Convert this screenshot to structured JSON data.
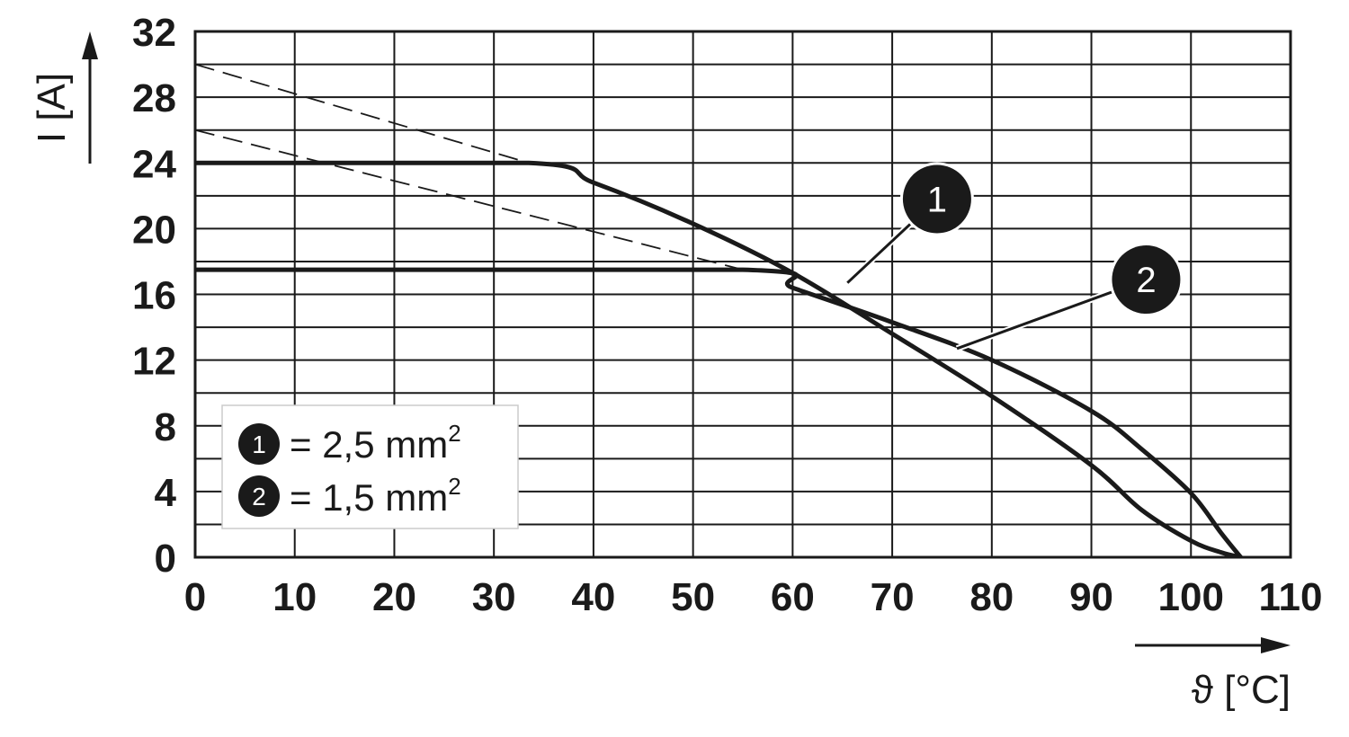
{
  "chart_data": {
    "type": "line",
    "xlabel": "ϑ [°C]",
    "ylabel": "I [A]",
    "xlim": [
      0,
      110
    ],
    "ylim": [
      0,
      32
    ],
    "x_ticks": [
      "0",
      "10",
      "20",
      "30",
      "40",
      "50",
      "60",
      "70",
      "80",
      "90",
      "100",
      "110"
    ],
    "y_ticks": [
      "0",
      "4",
      "8",
      "12",
      "16",
      "20",
      "24",
      "28",
      "32"
    ],
    "grid": true,
    "legend_position": "bottom-left",
    "series": [
      {
        "name": "2,5 mm",
        "badge": "1",
        "legend_prefix": "= ",
        "legend_label": "2,5 mm",
        "legend_sup": "2",
        "x": [
          0,
          33.5,
          40,
          50,
          60,
          70,
          80,
          90,
          95,
          100,
          103,
          105
        ],
        "y": [
          24,
          24,
          22.8,
          20.3,
          17.3,
          13.6,
          9.8,
          5.6,
          2.9,
          1.0,
          0.3,
          0
        ]
      },
      {
        "name": "1,5 mm",
        "badge": "2",
        "legend_prefix": "= ",
        "legend_label": "1,5 mm",
        "legend_sup": "2",
        "x": [
          0,
          55,
          60,
          70,
          80,
          90,
          95,
          100,
          103,
          105
        ],
        "y": [
          17.5,
          17.5,
          16.4,
          14.3,
          12.0,
          8.9,
          6.6,
          3.9,
          1.5,
          0
        ]
      }
    ],
    "extrapolations": [
      {
        "x": [
          0,
          33.5
        ],
        "y": [
          30,
          24
        ]
      },
      {
        "x": [
          0,
          55
        ],
        "y": [
          26,
          17.5
        ]
      }
    ],
    "annotations": [
      {
        "label": "1",
        "target": [
          65.5,
          16.7
        ],
        "position": [
          74.5,
          21.8
        ]
      },
      {
        "label": "2",
        "target": [
          76.5,
          12.7
        ],
        "position": [
          95.5,
          16.9
        ]
      }
    ]
  }
}
